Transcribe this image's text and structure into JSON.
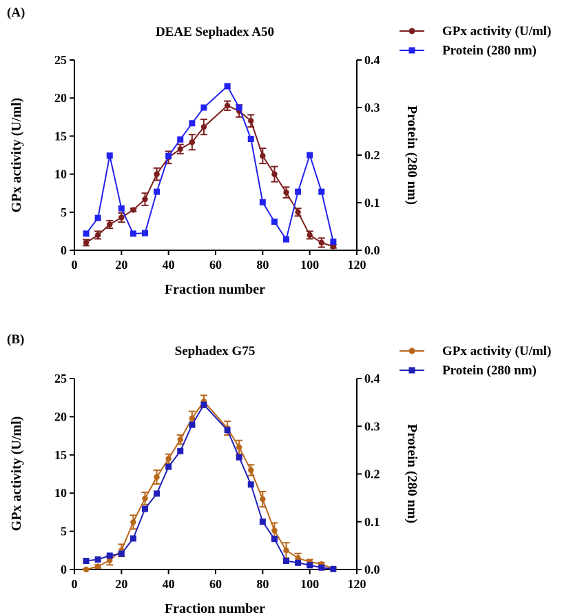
{
  "chart_data": [
    {
      "type": "line",
      "panel_label": "(A)",
      "title": "DEAE Sephadex A50",
      "xlabel": "Fraction number",
      "ylabel": "GPx activity (U/ml)",
      "y2label": "Protein (280 nm)",
      "xlim": [
        0,
        120
      ],
      "ylim": [
        0,
        25
      ],
      "y2lim": [
        0,
        0.4
      ],
      "xticks": [
        "0",
        "20",
        "40",
        "60",
        "80",
        "100",
        "120"
      ],
      "yticks": [
        "0",
        "5",
        "10",
        "15",
        "20",
        "25"
      ],
      "y2ticks": [
        "0.0",
        "0.1",
        "0.2",
        "0.3",
        "0.4"
      ],
      "grid": false,
      "legend_position": "outside-top-right",
      "series": [
        {
          "name": "GPx activity (U/ml)",
          "axis": "left",
          "marker": "circle",
          "color": "#7b1e1e",
          "x": [
            5,
            10,
            15,
            20,
            25,
            30,
            35,
            40,
            45,
            50,
            55,
            65,
            70,
            75,
            80,
            85,
            90,
            95,
            100,
            105,
            110
          ],
          "y": [
            1.0,
            2.0,
            3.4,
            4.3,
            5.3,
            6.7,
            10.0,
            12.2,
            13.3,
            14.2,
            16.2,
            19.0,
            18.3,
            17.0,
            12.4,
            10.0,
            7.6,
            5.0,
            2.0,
            1.0,
            0.5
          ],
          "err": [
            0.4,
            0.5,
            0.5,
            0.6,
            0.2,
            0.8,
            0.8,
            0.8,
            0.6,
            1.0,
            1.0,
            0.6,
            0.8,
            0.8,
            1.0,
            1.0,
            0.7,
            0.5,
            0.5,
            0.6,
            0.2
          ]
        },
        {
          "name": "Protein (280 nm)",
          "axis": "right",
          "marker": "square",
          "color": "#2222ee",
          "x": [
            5,
            10,
            15,
            20,
            25,
            30,
            35,
            40,
            45,
            50,
            55,
            65,
            70,
            75,
            80,
            85,
            90,
            95,
            100,
            105,
            110
          ],
          "y": [
            0.035,
            0.068,
            0.199,
            0.088,
            0.035,
            0.036,
            0.123,
            0.198,
            0.233,
            0.267,
            0.3,
            0.345,
            0.3,
            0.234,
            0.101,
            0.06,
            0.023,
            0.123,
            0.2,
            0.123,
            0.018
          ]
        }
      ]
    },
    {
      "type": "line",
      "panel_label": "(B)",
      "title": "Sephadex G75",
      "xlabel": "Fraction number",
      "ylabel": "GPx activity (U/ml)",
      "y2label": "Protein (280 nm)",
      "xlim": [
        0,
        120
      ],
      "ylim": [
        0,
        25
      ],
      "y2lim": [
        0,
        0.4
      ],
      "xticks": [
        "0",
        "20",
        "40",
        "60",
        "80",
        "100",
        "120"
      ],
      "yticks": [
        "0",
        "5",
        "10",
        "15",
        "20",
        "25"
      ],
      "y2ticks": [
        "0.0",
        "0.1",
        "0.2",
        "0.3",
        "0.4"
      ],
      "grid": false,
      "legend_position": "outside-top-right",
      "series": [
        {
          "name": "GPx activity (U/ml)",
          "axis": "left",
          "marker": "circle",
          "color": "#b8671a",
          "x": [
            5,
            10,
            15,
            20,
            25,
            30,
            35,
            40,
            45,
            50,
            55,
            65,
            70,
            75,
            80,
            85,
            90,
            95,
            100,
            105,
            110
          ],
          "y": [
            0.0,
            0.4,
            1.2,
            2.5,
            6.2,
            9.3,
            12.1,
            14.5,
            17.0,
            19.8,
            22.0,
            18.5,
            16.0,
            13.0,
            9.2,
            5.1,
            2.5,
            1.5,
            1.0,
            0.7,
            0.1
          ],
          "err": [
            0.1,
            0.2,
            0.6,
            0.8,
            0.9,
            0.8,
            0.9,
            0.6,
            0.6,
            0.9,
            0.8,
            0.9,
            0.9,
            0.7,
            1.0,
            1.0,
            1.0,
            0.6,
            0.3,
            0.2,
            0.1
          ]
        },
        {
          "name": "Protein (280 nm)",
          "axis": "right",
          "marker": "square",
          "color": "#2020b8",
          "x": [
            5,
            10,
            15,
            20,
            25,
            30,
            35,
            40,
            45,
            50,
            55,
            65,
            70,
            75,
            80,
            85,
            90,
            95,
            100,
            105,
            110
          ],
          "y": [
            0.018,
            0.021,
            0.029,
            0.033,
            0.065,
            0.127,
            0.159,
            0.215,
            0.248,
            0.303,
            0.345,
            0.292,
            0.235,
            0.178,
            0.1,
            0.064,
            0.018,
            0.014,
            0.009,
            0.004,
            0.001
          ]
        }
      ]
    }
  ]
}
